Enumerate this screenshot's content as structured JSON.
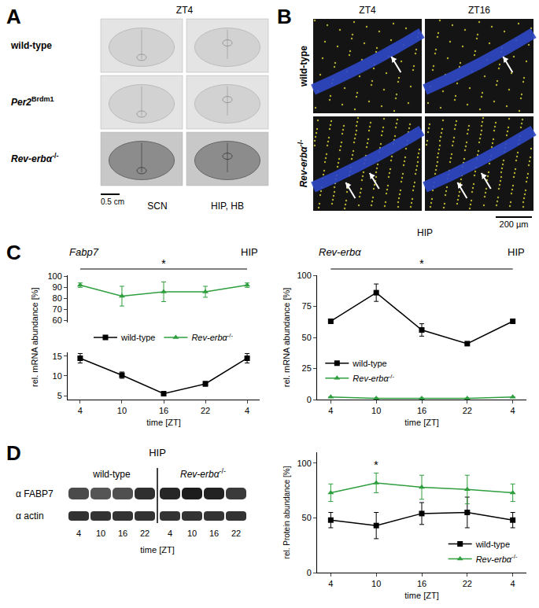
{
  "panel_A": {
    "letter": "A",
    "header": "ZT4",
    "rows": [
      {
        "text": "wild-type",
        "sup": ""
      },
      {
        "text": "Per2",
        "sup": "Brdm1"
      },
      {
        "text": "Rev-erbα",
        "sup": "-/-"
      }
    ],
    "scale_bar": "0.5 cm",
    "column_labels": [
      "SCN",
      "HIP, HB"
    ]
  },
  "panel_B": {
    "letter": "B",
    "column_heads": [
      "ZT4",
      "ZT16"
    ],
    "rows": [
      {
        "text": "wild-type",
        "sup": ""
      },
      {
        "text": "Rev-erbα",
        "sup": "-/-"
      }
    ],
    "scale_bar": "200 µm",
    "caption": "HIP"
  },
  "panel_C": {
    "letter": "C"
  },
  "chart_data": [
    {
      "type": "line",
      "title": "Fabp7",
      "annotations": [
        "HIP"
      ],
      "significance": {
        "label": "*",
        "from_index": 0,
        "to_index": 4
      },
      "categories": [
        "4",
        "10",
        "16",
        "22",
        "4"
      ],
      "xlabel": "time [ZT]",
      "ylabel": "rel. mRNA abundance [%]",
      "ylim": [
        4,
        16
      ],
      "yticks": [
        5,
        10,
        15
      ],
      "y2lim": [
        58,
        101
      ],
      "y2ticks": [
        60,
        70,
        80,
        90,
        100
      ],
      "legend": "middle",
      "series": [
        {
          "name": "wild-type",
          "color": "#000000",
          "marker": "square",
          "axis": "y",
          "values": [
            14.5,
            10.2,
            5.5,
            8.0,
            14.5
          ],
          "errors": [
            1.2,
            0.8,
            0.3,
            0.6,
            1.2
          ]
        },
        {
          "name": "Rev-erbα-/-",
          "color": "#2e9e3e",
          "marker": "triangle-up",
          "axis": "y2",
          "values": [
            92,
            82,
            86,
            86,
            92
          ],
          "errors": [
            2,
            9,
            9,
            5,
            2
          ]
        }
      ]
    },
    {
      "type": "line",
      "title": "Rev-erbα",
      "annotations": [
        "HIP"
      ],
      "significance": {
        "label": "*",
        "from_index": 0,
        "to_index": 4
      },
      "categories": [
        "4",
        "10",
        "16",
        "22",
        "4"
      ],
      "xlabel": "time [ZT]",
      "ylabel": "rel. mRNA abundance [%]",
      "ylim": [
        0,
        100
      ],
      "yticks": [
        0,
        25,
        50,
        75,
        100
      ],
      "legend": "lower left",
      "series": [
        {
          "name": "wild-type",
          "color": "#000000",
          "marker": "square",
          "values": [
            63,
            86,
            56,
            45,
            63
          ],
          "errors": [
            1,
            7,
            5,
            1,
            1
          ]
        },
        {
          "name": "Rev-erbα-/-",
          "color": "#2e9e3e",
          "marker": "triangle-up",
          "values": [
            2,
            1,
            1,
            1,
            2
          ],
          "errors": [
            0,
            0,
            0,
            0,
            0
          ]
        }
      ]
    },
    {
      "type": "line",
      "significance": {
        "label": "*",
        "at_index": 1
      },
      "categories": [
        "4",
        "10",
        "16",
        "22",
        "4"
      ],
      "xlabel": "time [ZT]",
      "ylabel": "rel. Protein abundance [%]",
      "ylim": [
        0,
        110
      ],
      "yticks": [
        0,
        50,
        100
      ],
      "legend": "lower right",
      "series": [
        {
          "name": "wild-type",
          "color": "#000000",
          "marker": "square",
          "values": [
            48,
            43,
            54,
            55,
            48
          ],
          "errors": [
            7,
            12,
            10,
            14,
            7
          ]
        },
        {
          "name": "Rev-erbα-/-",
          "color": "#2e9e3e",
          "marker": "triangle-up",
          "values": [
            73,
            82,
            78,
            76,
            73
          ],
          "errors": [
            8,
            9,
            11,
            13,
            8
          ]
        }
      ]
    }
  ],
  "panel_D_blot": {
    "letter": "D",
    "title": "HIP",
    "groups": [
      {
        "text": "wild-type",
        "sup": ""
      },
      {
        "text": "Rev-erbα",
        "sup": "-/-"
      }
    ],
    "rows": [
      "α FABP7",
      "α actin"
    ],
    "lanes": [
      "4",
      "10",
      "16",
      "22",
      "4",
      "10",
      "16",
      "22"
    ],
    "xlabel": "time [ZT]"
  }
}
